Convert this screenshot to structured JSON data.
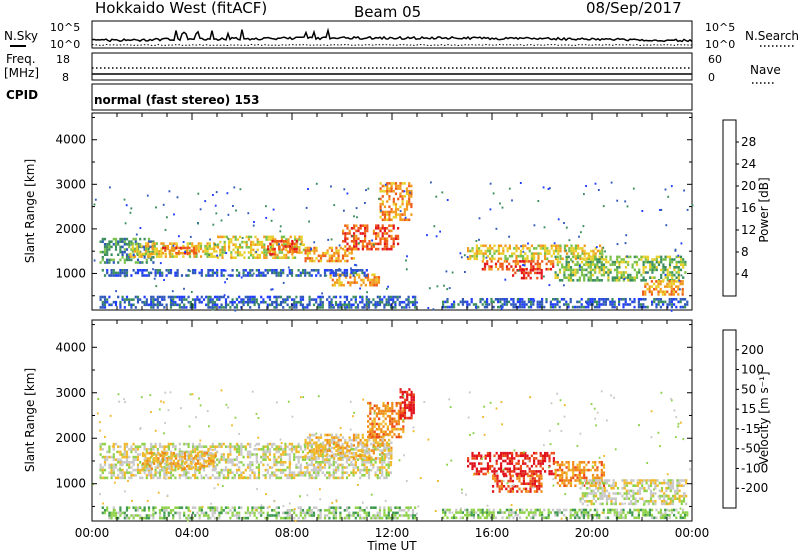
{
  "header": {
    "title": "Hokkaido West (fitACF)",
    "beam": "Beam 05",
    "date": "08/Sep/2017"
  },
  "labels": {
    "nsky": "N.Sky",
    "nsearch": "N.Search",
    "freq_line1": "Freq.",
    "freq_line2": "[MHz]",
    "nave": "Nave",
    "cpid": "CPID",
    "cpid_value": "normal (fast stereo) 153",
    "noise_hi_left": "10^5",
    "noise_lo_left": "10^0",
    "noise_hi_right": "10^5",
    "noise_lo_right": "10^0",
    "freq_hi": "18",
    "freq_lo": "8",
    "nave_hi": "60",
    "nave_lo": "0"
  },
  "chart_data": [
    {
      "type": "heatmap",
      "name": "power",
      "ylabel": "Slant Range [km]",
      "xlabel": "",
      "ylim": [
        180,
        4600
      ],
      "xlim": [
        0,
        24
      ],
      "yticks": [
        "1000",
        "2000",
        "3000",
        "4000"
      ],
      "ytick_values": [
        1000,
        2000,
        3000,
        4000
      ],
      "colorbar_label": "Power [dB]",
      "colorbar_ticks": [
        "4",
        "8",
        "12",
        "16",
        "20",
        "24",
        "28"
      ],
      "colorbar_colors": [
        "#1f3cff",
        "#2f59b8",
        "#3a8d5c",
        "#78c04a",
        "#e8cf2a",
        "#f39a1c",
        "#ee5a18",
        "#e4141b"
      ],
      "features": [
        {
          "t": [
            0.3,
            2.5
          ],
          "r": [
            1200,
            1800
          ],
          "level": 2
        },
        {
          "t": [
            1.5,
            5.0
          ],
          "r": [
            1350,
            1700
          ],
          "level": 4
        },
        {
          "t": [
            2.8,
            4.2
          ],
          "r": [
            1400,
            1600
          ],
          "level": 6
        },
        {
          "t": [
            5.0,
            8.5
          ],
          "r": [
            1300,
            1850
          ],
          "level": 4
        },
        {
          "t": [
            7.0,
            8.2
          ],
          "r": [
            1400,
            1750
          ],
          "level": 6
        },
        {
          "t": [
            8.5,
            10.5
          ],
          "r": [
            1250,
            1600
          ],
          "level": 5
        },
        {
          "t": [
            9.5,
            11.5
          ],
          "r": [
            700,
            1000
          ],
          "level": 5
        },
        {
          "t": [
            10.0,
            12.3
          ],
          "r": [
            1500,
            2100
          ],
          "level": 6
        },
        {
          "t": [
            11.5,
            12.8
          ],
          "r": [
            2200,
            3050
          ],
          "level": 5
        },
        {
          "t": [
            0.3,
            13.0
          ],
          "r": [
            200,
            500
          ],
          "level": 1
        },
        {
          "t": [
            0.3,
            11.0
          ],
          "r": [
            900,
            1100
          ],
          "level": 1
        },
        {
          "t": [
            15.0,
            20.5
          ],
          "r": [
            1300,
            1650
          ],
          "level": 4
        },
        {
          "t": [
            15.5,
            18.5
          ],
          "r": [
            1050,
            1300
          ],
          "level": 6
        },
        {
          "t": [
            16.8,
            18.0
          ],
          "r": [
            850,
            1100
          ],
          "level": 7
        },
        {
          "t": [
            18.5,
            23.8
          ],
          "r": [
            800,
            1400
          ],
          "level": 3
        },
        {
          "t": [
            22.0,
            23.7
          ],
          "r": [
            500,
            850
          ],
          "level": 5
        },
        {
          "t": [
            14.0,
            23.9
          ],
          "r": [
            200,
            450
          ],
          "level": 1
        }
      ]
    },
    {
      "type": "heatmap",
      "name": "velocity",
      "ylabel": "Slant Range [km]",
      "xlabel": "Time UT",
      "ylim": [
        180,
        4600
      ],
      "xlim": [
        0,
        24
      ],
      "yticks": [
        "1000",
        "2000",
        "3000",
        "4000"
      ],
      "ytick_values": [
        1000,
        2000,
        3000,
        4000
      ],
      "xticks": [
        "00:00",
        "04:00",
        "08:00",
        "12:00",
        "16:00",
        "20:00",
        "00:00"
      ],
      "xtick_values": [
        0,
        4,
        8,
        12,
        16,
        20,
        24
      ],
      "colorbar_label": "Velocity [m s⁻¹]",
      "colorbar_ticks": [
        "200",
        "100",
        "50",
        "15",
        "-15",
        "-50",
        "-100",
        "-200"
      ],
      "colorbar_colors": [
        "#2333c8",
        "#2f5e6a",
        "#3d9a4e",
        "#8fd24a",
        "#c8c8c8",
        "#f0b92a",
        "#f08c1a",
        "#ec4b17",
        "#e0111b"
      ],
      "features": [
        {
          "t": [
            0.3,
            12.0
          ],
          "r": [
            1100,
            1900
          ],
          "level": 4
        },
        {
          "t": [
            2.0,
            5.0
          ],
          "r": [
            1300,
            1700
          ],
          "level": 5
        },
        {
          "t": [
            8.5,
            12.0
          ],
          "r": [
            1500,
            2100
          ],
          "level": 5
        },
        {
          "t": [
            11.0,
            12.5
          ],
          "r": [
            2000,
            2800
          ],
          "level": 6
        },
        {
          "t": [
            12.3,
            12.9
          ],
          "r": [
            2400,
            3100
          ],
          "level": 8
        },
        {
          "t": [
            0.3,
            13.0
          ],
          "r": [
            200,
            500
          ],
          "level": 3
        },
        {
          "t": [
            15.0,
            18.5
          ],
          "r": [
            1200,
            1700
          ],
          "level": 8
        },
        {
          "t": [
            16.0,
            18.0
          ],
          "r": [
            800,
            1200
          ],
          "level": 7
        },
        {
          "t": [
            18.5,
            20.5
          ],
          "r": [
            900,
            1500
          ],
          "level": 6
        },
        {
          "t": [
            19.5,
            23.8
          ],
          "r": [
            500,
            1100
          ],
          "level": 4
        },
        {
          "t": [
            14.0,
            23.9
          ],
          "r": [
            200,
            450
          ],
          "level": 3
        }
      ]
    }
  ]
}
